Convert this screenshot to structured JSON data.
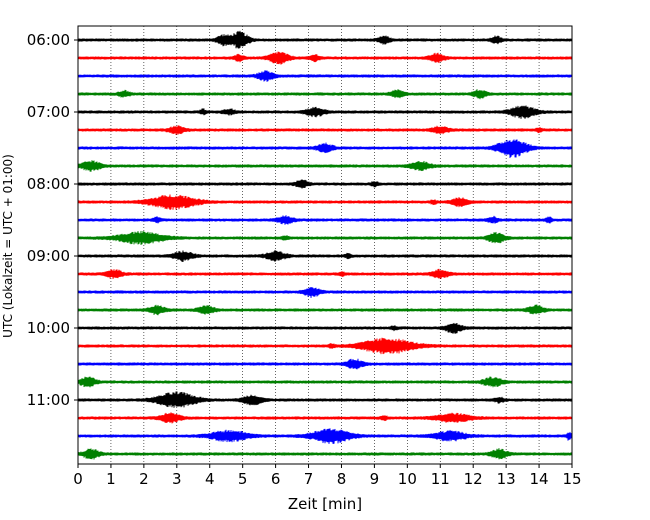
{
  "chart_data": {
    "type": "line",
    "title": "",
    "xlabel": "Zeit  [min]",
    "ylabel": "UTC (Lokalzeit = UTC + 01:00)",
    "xlim": [
      0,
      15
    ],
    "x_ticks": [
      0,
      1,
      2,
      3,
      4,
      5,
      6,
      7,
      8,
      9,
      10,
      11,
      12,
      13,
      14,
      15
    ],
    "x_grid": "dotted vertical lines at every minute",
    "y_tick_labels": [
      "06:00",
      "07:00",
      "08:00",
      "09:00",
      "10:00",
      "11:00"
    ],
    "trace_interval_min": 15,
    "color_cycle": [
      "#000000",
      "#ff0000",
      "#0000ff",
      "#008000"
    ],
    "traces": [
      {
        "start": "06:00",
        "bursts": [
          [
            4.9,
            0.55,
            0.7
          ],
          [
            4.4,
            0.4,
            0.4
          ],
          [
            9.3,
            0.35,
            0.3
          ],
          [
            12.7,
            0.3,
            0.3
          ]
        ]
      },
      {
        "start": "06:15",
        "bursts": [
          [
            6.1,
            0.6,
            0.5
          ],
          [
            7.2,
            0.3,
            0.25
          ],
          [
            4.9,
            0.3,
            0.25
          ],
          [
            10.9,
            0.45,
            0.35
          ]
        ]
      },
      {
        "start": "06:30",
        "bursts": [
          [
            5.7,
            0.5,
            0.4
          ]
        ]
      },
      {
        "start": "06:45",
        "bursts": [
          [
            1.4,
            0.35,
            0.25
          ],
          [
            9.7,
            0.4,
            0.3
          ],
          [
            12.2,
            0.4,
            0.35
          ]
        ]
      },
      {
        "start": "07:00",
        "bursts": [
          [
            7.2,
            0.6,
            0.35
          ],
          [
            4.6,
            0.4,
            0.2
          ],
          [
            13.5,
            0.8,
            0.5
          ],
          [
            3.8,
            0.2,
            0.2
          ]
        ]
      },
      {
        "start": "07:15",
        "bursts": [
          [
            3.0,
            0.5,
            0.3
          ],
          [
            11.0,
            0.5,
            0.3
          ],
          [
            14.0,
            0.2,
            0.15
          ]
        ]
      },
      {
        "start": "07:30",
        "bursts": [
          [
            7.5,
            0.5,
            0.35
          ],
          [
            13.2,
            0.9,
            0.8
          ]
        ]
      },
      {
        "start": "07:45",
        "bursts": [
          [
            0.4,
            0.6,
            0.4
          ],
          [
            10.4,
            0.6,
            0.35
          ]
        ]
      },
      {
        "start": "08:00",
        "bursts": [
          [
            6.8,
            0.4,
            0.3
          ],
          [
            9.0,
            0.2,
            0.2
          ]
        ]
      },
      {
        "start": "08:15",
        "bursts": [
          [
            2.9,
            1.4,
            0.6
          ],
          [
            11.6,
            0.5,
            0.35
          ],
          [
            10.8,
            0.2,
            0.15
          ]
        ]
      },
      {
        "start": "08:30",
        "bursts": [
          [
            6.3,
            0.5,
            0.3
          ],
          [
            12.6,
            0.3,
            0.25
          ],
          [
            14.3,
            0.2,
            0.2
          ],
          [
            2.4,
            0.25,
            0.2
          ]
        ]
      },
      {
        "start": "08:45",
        "bursts": [
          [
            1.9,
            1.4,
            0.5
          ],
          [
            6.3,
            0.2,
            0.15
          ],
          [
            12.7,
            0.5,
            0.45
          ]
        ]
      },
      {
        "start": "09:00",
        "bursts": [
          [
            3.2,
            0.6,
            0.4
          ],
          [
            6.0,
            0.6,
            0.4
          ],
          [
            8.2,
            0.2,
            0.15
          ]
        ]
      },
      {
        "start": "09:15",
        "bursts": [
          [
            1.1,
            0.5,
            0.35
          ],
          [
            11.0,
            0.5,
            0.35
          ],
          [
            8.0,
            0.2,
            0.15
          ]
        ]
      },
      {
        "start": "09:30",
        "bursts": [
          [
            7.1,
            0.5,
            0.4
          ]
        ]
      },
      {
        "start": "09:45",
        "bursts": [
          [
            2.4,
            0.5,
            0.35
          ],
          [
            3.9,
            0.5,
            0.35
          ],
          [
            13.9,
            0.5,
            0.35
          ]
        ]
      },
      {
        "start": "10:00",
        "bursts": [
          [
            11.4,
            0.5,
            0.4
          ],
          [
            9.6,
            0.2,
            0.15
          ]
        ]
      },
      {
        "start": "10:15",
        "bursts": [
          [
            9.4,
            1.6,
            0.65
          ],
          [
            7.7,
            0.2,
            0.15
          ]
        ]
      },
      {
        "start": "10:30",
        "bursts": [
          [
            8.4,
            0.5,
            0.4
          ]
        ]
      },
      {
        "start": "10:45",
        "bursts": [
          [
            0.3,
            0.5,
            0.4
          ],
          [
            12.6,
            0.6,
            0.4
          ]
        ]
      },
      {
        "start": "11:00",
        "bursts": [
          [
            3.0,
            1.2,
            0.65
          ],
          [
            5.3,
            0.6,
            0.4
          ],
          [
            12.8,
            0.3,
            0.2
          ]
        ]
      },
      {
        "start": "11:15",
        "bursts": [
          [
            2.8,
            0.6,
            0.4
          ],
          [
            11.4,
            1.1,
            0.35
          ],
          [
            9.3,
            0.2,
            0.15
          ]
        ]
      },
      {
        "start": "11:30",
        "bursts": [
          [
            7.7,
            1.2,
            0.6
          ],
          [
            4.6,
            1.2,
            0.45
          ],
          [
            11.3,
            1.0,
            0.4
          ],
          [
            14.9,
            0.15,
            0.3
          ]
        ]
      },
      {
        "start": "11:45",
        "bursts": [
          [
            0.4,
            0.5,
            0.4
          ],
          [
            12.8,
            0.5,
            0.4
          ]
        ]
      }
    ]
  }
}
